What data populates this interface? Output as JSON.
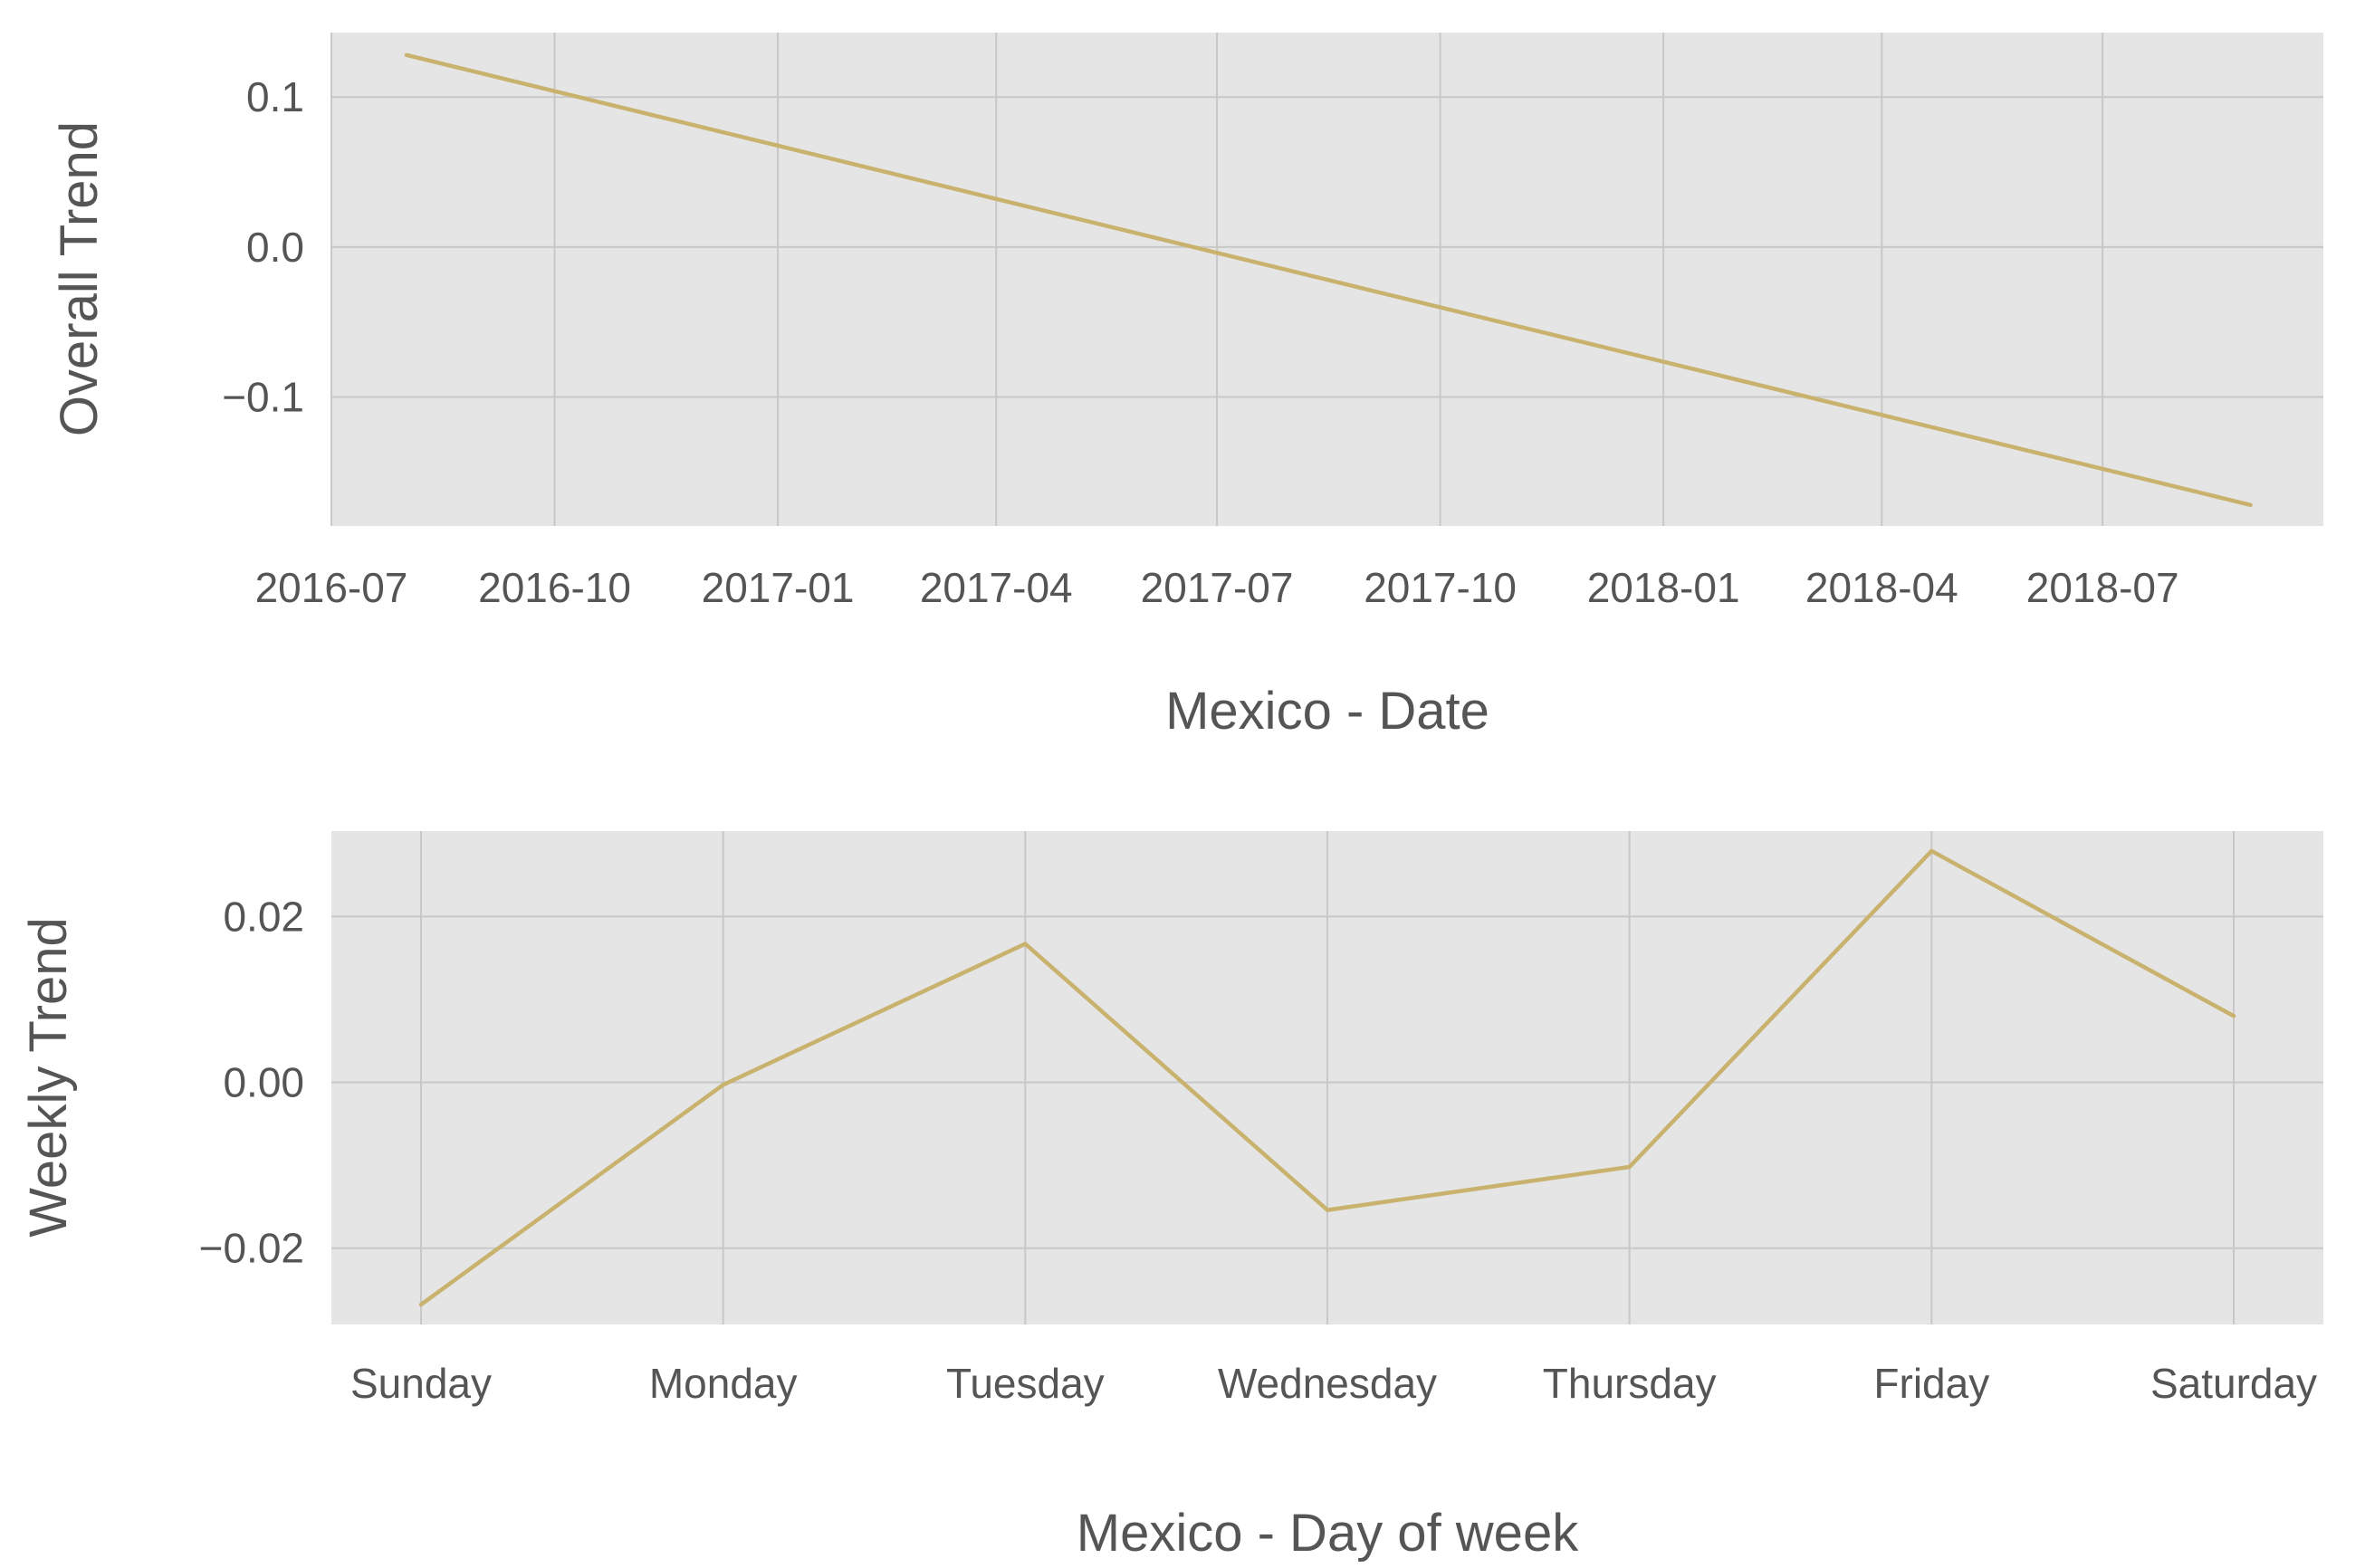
{
  "colors": {
    "line": "#c8b26e",
    "background": "#e5e5e5",
    "grid": "#c8c8c8"
  },
  "chart_data": [
    {
      "type": "line",
      "xlabel": "Mexico - Date",
      "ylabel": "Overall Trend",
      "x_ticks": [
        "2016-07",
        "2016-10",
        "2017-01",
        "2017-04",
        "2017-07",
        "2017-10",
        "2018-01",
        "2018-04",
        "2018-07"
      ],
      "y_ticks": [
        "0.1",
        "0.0",
        "−0.1"
      ],
      "y_tick_values": [
        0.1,
        0.0,
        -0.1
      ],
      "xlim": [
        "2016-07-01",
        "2018-09-30"
      ],
      "ylim": [
        -0.186,
        0.143
      ],
      "grid": true,
      "series": [
        {
          "x": [
            "2016-08-01",
            "2018-08-31"
          ],
          "y": [
            0.128,
            -0.172
          ]
        }
      ]
    },
    {
      "type": "line",
      "xlabel": "Mexico - Day of week",
      "ylabel": "Weekly Trend",
      "categories": [
        "Sunday",
        "Monday",
        "Tuesday",
        "Wednesday",
        "Thursday",
        "Friday",
        "Saturday"
      ],
      "y_ticks": [
        "0.02",
        "0.00",
        "−0.02"
      ],
      "y_tick_values": [
        0.02,
        0.0,
        -0.02
      ],
      "ylim": [
        -0.0292,
        0.0303
      ],
      "grid": true,
      "series": [
        {
          "values": [
            -0.0268,
            -0.0003,
            0.0167,
            -0.0154,
            -0.0102,
            0.0279,
            0.008
          ]
        }
      ]
    }
  ]
}
